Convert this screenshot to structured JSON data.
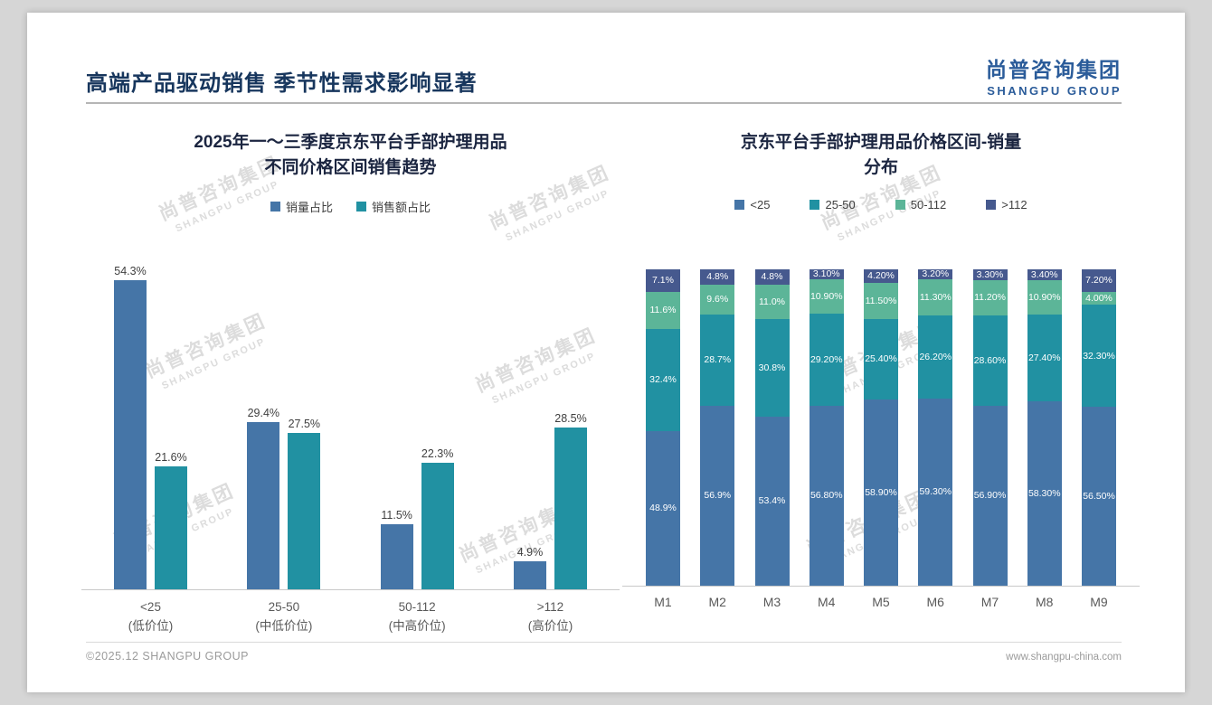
{
  "slide": {
    "title": "高端产品驱动销售 季节性需求影响显著",
    "logo": {
      "cn": "尚普咨询集团",
      "en": "SHANGPU GROUP"
    },
    "watermark": {
      "cn": "尚普咨询集团",
      "en": "SHANGPU GROUP"
    },
    "footer": {
      "left": "©2025.12 SHANGPU GROUP",
      "right": "www.shangpu-china.com"
    }
  },
  "colors": {
    "blue": "#4575a7",
    "teal": "#2191a2",
    "green": "#5cb598",
    "navy": "#46598e",
    "title_navy": "#17365d",
    "logo_blue": "#2b5c9a"
  },
  "chart_data": [
    {
      "type": "bar",
      "title_line1": "2025年一～三季度京东平台手部护理用品",
      "title_line2": "不同价格区间销售趋势",
      "categories": [
        "<25",
        "25-50",
        "50-112",
        ">112"
      ],
      "category_sublabels": [
        "(低价位)",
        "(中低价位)",
        "(中高价位)",
        "(高价位)"
      ],
      "unit": "%",
      "ylim": [
        0,
        60
      ],
      "legend_position": "top",
      "grid": false,
      "series": [
        {
          "name": "销量占比",
          "color": "blue",
          "values": [
            54.3,
            29.4,
            11.5,
            4.9
          ],
          "labels": [
            "54.3%",
            "29.4%",
            "11.5%",
            "4.9%"
          ]
        },
        {
          "name": "销售额占比",
          "color": "teal",
          "values": [
            21.6,
            27.5,
            22.3,
            28.5
          ],
          "labels": [
            "21.6%",
            "27.5%",
            "22.3%",
            "28.5%"
          ]
        }
      ]
    },
    {
      "type": "stacked-bar",
      "title_line1": "京东平台手部护理用品价格区间-销量",
      "title_line2": "分布",
      "categories": [
        "M1",
        "M2",
        "M3",
        "M4",
        "M5",
        "M6",
        "M7",
        "M8",
        "M9"
      ],
      "unit": "%",
      "ylim": [
        0,
        100
      ],
      "legend_position": "top",
      "grid": false,
      "series": [
        {
          "name": "<25",
          "color": "blue",
          "values": [
            48.9,
            56.9,
            53.4,
            56.8,
            58.9,
            59.3,
            56.9,
            58.3,
            56.5
          ],
          "labels": [
            "48.9%",
            "56.9%",
            "53.4%",
            "56.80%",
            "58.90%",
            "59.30%",
            "56.90%",
            "58.30%",
            "56.50%"
          ]
        },
        {
          "name": "25-50",
          "color": "teal",
          "values": [
            32.4,
            28.7,
            30.8,
            29.2,
            25.4,
            26.2,
            28.6,
            27.4,
            32.3
          ],
          "labels": [
            "32.4%",
            "28.7%",
            "30.8%",
            "29.20%",
            "25.40%",
            "26.20%",
            "28.60%",
            "27.40%",
            "32.30%"
          ]
        },
        {
          "name": "50-112",
          "color": "green",
          "values": [
            11.6,
            9.6,
            11.0,
            10.9,
            11.5,
            11.3,
            11.2,
            10.9,
            4.0
          ],
          "labels": [
            "11.6%",
            "9.6%",
            "11.0%",
            "10.90%",
            "11.50%",
            "11.30%",
            "11.20%",
            "10.90%",
            "4.00%"
          ]
        },
        {
          "name": ">112",
          "color": "navy",
          "values": [
            7.1,
            4.8,
            4.8,
            3.1,
            4.2,
            3.2,
            3.3,
            3.4,
            7.2
          ],
          "labels": [
            "7.1%",
            "4.8%",
            "4.8%",
            "3.10%",
            "4.20%",
            "3.20%",
            "3.30%",
            "3.40%",
            "7.20%"
          ]
        }
      ]
    }
  ]
}
